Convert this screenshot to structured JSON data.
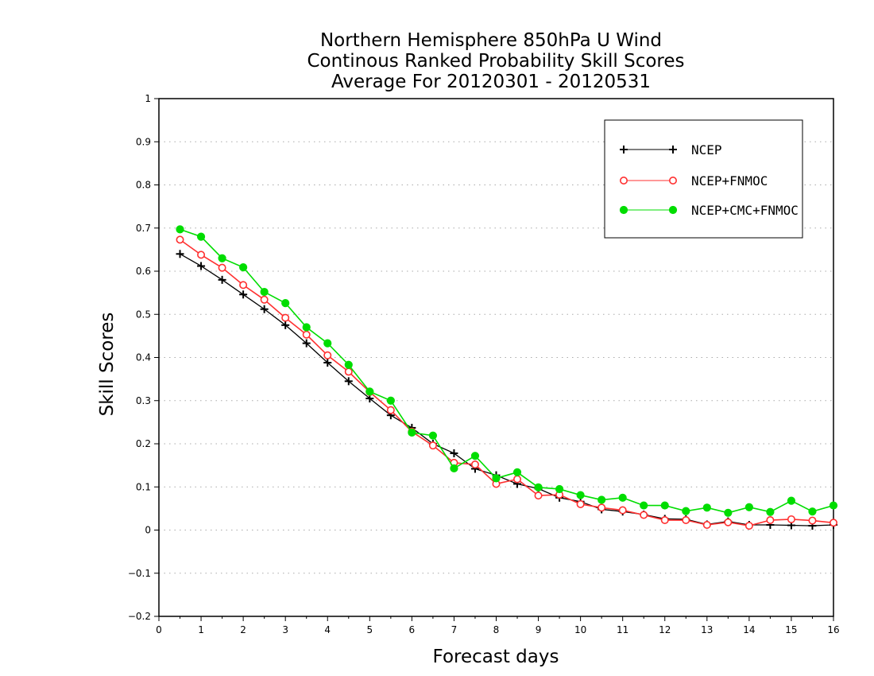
{
  "chart_data": {
    "type": "line",
    "title": [
      "Northern Hemisphere 850hPa U Wind",
      "Continous Ranked Probability Skill Scores",
      "Average For 20120301 - 20120531"
    ],
    "xlabel": "Forecast days",
    "ylabel": "Skill Scores",
    "xlim": [
      0,
      16
    ],
    "ylim": [
      -0.2,
      1
    ],
    "x_ticks": [
      0,
      1,
      2,
      3,
      4,
      5,
      6,
      7,
      8,
      9,
      10,
      11,
      12,
      13,
      14,
      15,
      16
    ],
    "y_ticks": [
      -0.2,
      -0.1,
      0,
      0.1,
      0.2,
      0.3,
      0.4,
      0.5,
      0.6,
      0.7,
      0.8,
      0.9,
      1
    ],
    "grid": "horizontal-dotted",
    "legend_position": "top-right",
    "x": [
      0.5,
      1,
      1.5,
      2,
      2.5,
      3,
      3.5,
      4,
      4.5,
      5,
      5.5,
      6,
      6.5,
      7,
      7.5,
      8,
      8.5,
      9,
      9.5,
      10,
      10.5,
      11,
      11.5,
      12,
      12.5,
      13,
      13.5,
      14,
      14.5,
      15,
      15.5,
      16
    ],
    "series": [
      {
        "name": "NCEP",
        "color": "#000000",
        "marker": "plus",
        "values": [
          0.64,
          0.612,
          0.58,
          0.546,
          0.512,
          0.475,
          0.433,
          0.388,
          0.345,
          0.305,
          0.266,
          0.237,
          0.2,
          0.178,
          0.142,
          0.127,
          0.107,
          0.096,
          0.075,
          0.066,
          0.048,
          0.043,
          0.036,
          0.026,
          0.025,
          0.013,
          0.02,
          0.012,
          0.012,
          0.011,
          0.01,
          0.012
        ]
      },
      {
        "name": "NCEP+FNMOC",
        "color": "#ff3030",
        "marker": "open-circle",
        "values": [
          0.673,
          0.638,
          0.608,
          0.568,
          0.534,
          0.492,
          0.453,
          0.405,
          0.367,
          0.32,
          0.278,
          0.228,
          0.196,
          0.156,
          0.152,
          0.107,
          0.118,
          0.08,
          0.082,
          0.06,
          0.052,
          0.046,
          0.035,
          0.023,
          0.023,
          0.012,
          0.018,
          0.01,
          0.023,
          0.025,
          0.022,
          0.017
        ]
      },
      {
        "name": "NCEP+CMC+FNMOC",
        "color": "#00dd00",
        "marker": "filled-circle",
        "values": [
          0.697,
          0.68,
          0.63,
          0.609,
          0.552,
          0.526,
          0.47,
          0.433,
          0.383,
          0.321,
          0.3,
          0.226,
          0.219,
          0.143,
          0.172,
          0.12,
          0.134,
          0.099,
          0.095,
          0.081,
          0.07,
          0.075,
          0.057,
          0.057,
          0.044,
          0.052,
          0.04,
          0.053,
          0.042,
          0.068,
          0.043,
          0.057
        ]
      }
    ]
  }
}
